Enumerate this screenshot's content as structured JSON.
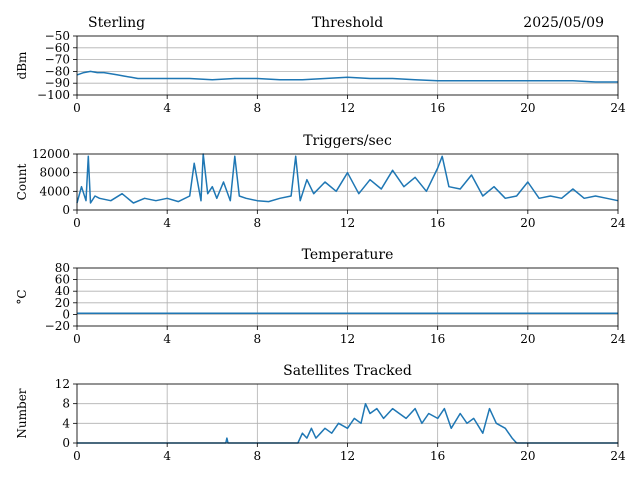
{
  "header": {
    "station": "Sterling",
    "date": "2025/05/09"
  },
  "colors": {
    "series": "#1f77b4",
    "grid": "#b0b0b0",
    "axes": "#000000"
  },
  "chart_data": [
    {
      "type": "line",
      "title": "Threshold",
      "xlabel": "",
      "ylabel": "dBm",
      "xlim": [
        0,
        24
      ],
      "ylim": [
        -100,
        -50
      ],
      "xticks": [
        0,
        4,
        8,
        12,
        16,
        20,
        24
      ],
      "yticks": [
        -100,
        -90,
        -80,
        -70,
        -60,
        -50
      ],
      "ytick_labels": [
        "−100",
        "−90",
        "−80",
        "−70",
        "−60",
        "−50"
      ],
      "grid": true,
      "series": [
        {
          "x": [
            0,
            0.3,
            0.6,
            0.9,
            1.2,
            1.5,
            1.8,
            2.1,
            2.4,
            2.7,
            3,
            4,
            5,
            6,
            7,
            8,
            9,
            10,
            11,
            12,
            13,
            14,
            15,
            16,
            17,
            18,
            19,
            20,
            21,
            22,
            23,
            24
          ],
          "y": [
            -83,
            -81,
            -80,
            -81,
            -81,
            -82,
            -83,
            -84,
            -85,
            -86,
            -86,
            -86,
            -86,
            -87,
            -86,
            -86,
            -87,
            -87,
            -86,
            -85,
            -86,
            -86,
            -87,
            -88,
            -88,
            -88,
            -88,
            -88,
            -88,
            -88,
            -89,
            -89
          ]
        }
      ]
    },
    {
      "type": "line",
      "title": "Triggers/sec",
      "xlabel": "",
      "ylabel": "Count",
      "xlim": [
        0,
        24
      ],
      "ylim": [
        0,
        12000
      ],
      "xticks": [
        0,
        4,
        8,
        12,
        16,
        20,
        24
      ],
      "yticks": [
        0,
        4000,
        8000,
        12000
      ],
      "ytick_labels": [
        "0",
        "4000",
        "8000",
        "12000"
      ],
      "grid": true,
      "series": [
        {
          "x": [
            0,
            0.2,
            0.4,
            0.5,
            0.6,
            0.8,
            1,
            1.5,
            2,
            2.5,
            3,
            3.5,
            4,
            4.5,
            5,
            5.2,
            5.5,
            5.6,
            5.8,
            6,
            6.2,
            6.5,
            6.8,
            7,
            7.2,
            7.5,
            8,
            8.5,
            9,
            9.5,
            9.7,
            9.9,
            10.2,
            10.5,
            11,
            11.5,
            12,
            12.5,
            13,
            13.5,
            14,
            14.5,
            15,
            15.5,
            16,
            16.2,
            16.5,
            17,
            17.5,
            18,
            18.5,
            19,
            19.5,
            20,
            20.5,
            21,
            21.5,
            22,
            22.5,
            23,
            23.5,
            24
          ],
          "y": [
            1500,
            5000,
            2000,
            11500,
            1500,
            3000,
            2500,
            2000,
            3500,
            1500,
            2500,
            2000,
            2500,
            1800,
            3000,
            10000,
            2000,
            12000,
            3500,
            5000,
            2500,
            6000,
            2000,
            11500,
            3000,
            2500,
            2000,
            1800,
            2500,
            3000,
            11500,
            2000,
            6500,
            3500,
            6000,
            4000,
            8000,
            3500,
            6500,
            4500,
            8500,
            5000,
            7000,
            4000,
            9000,
            11500,
            5000,
            4500,
            7500,
            3000,
            5000,
            2500,
            3000,
            6000,
            2500,
            3000,
            2500,
            4500,
            2500,
            3000,
            2500,
            2000
          ]
        }
      ]
    },
    {
      "type": "line",
      "title": "Temperature",
      "xlabel": "",
      "ylabel": "°C",
      "xlim": [
        0,
        24
      ],
      "ylim": [
        -20,
        80
      ],
      "xticks": [
        0,
        4,
        8,
        12,
        16,
        20,
        24
      ],
      "yticks": [
        -20,
        0,
        20,
        40,
        60,
        80
      ],
      "ytick_labels": [
        "−20",
        "0",
        "20",
        "40",
        "60",
        "80"
      ],
      "grid": true,
      "series": [
        {
          "x": [
            0,
            24
          ],
          "y": [
            2,
            2
          ]
        }
      ]
    },
    {
      "type": "line",
      "title": "Satellites Tracked",
      "xlabel": "",
      "ylabel": "Number",
      "xlim": [
        0,
        24
      ],
      "ylim": [
        0,
        12
      ],
      "xticks": [
        0,
        4,
        8,
        12,
        16,
        20,
        24
      ],
      "yticks": [
        0,
        4,
        8,
        12
      ],
      "ytick_labels": [
        "0",
        "4",
        "8",
        "12"
      ],
      "grid": true,
      "series": [
        {
          "x": [
            0,
            6.6,
            6.65,
            6.7,
            9.8,
            10,
            10.2,
            10.4,
            10.6,
            10.8,
            11,
            11.3,
            11.6,
            12,
            12.3,
            12.6,
            12.8,
            13,
            13.3,
            13.6,
            14,
            14.3,
            14.6,
            15,
            15.3,
            15.6,
            16,
            16.3,
            16.6,
            17,
            17.3,
            17.6,
            18,
            18.3,
            18.6,
            19,
            19.3,
            19.5,
            24
          ],
          "y": [
            0,
            0,
            1,
            0,
            0,
            2,
            1,
            3,
            1,
            2,
            3,
            2,
            4,
            3,
            5,
            4,
            8,
            6,
            7,
            5,
            7,
            6,
            5,
            7,
            4,
            6,
            5,
            7,
            3,
            6,
            4,
            5,
            2,
            7,
            4,
            3,
            1,
            0,
            0
          ]
        }
      ]
    }
  ]
}
